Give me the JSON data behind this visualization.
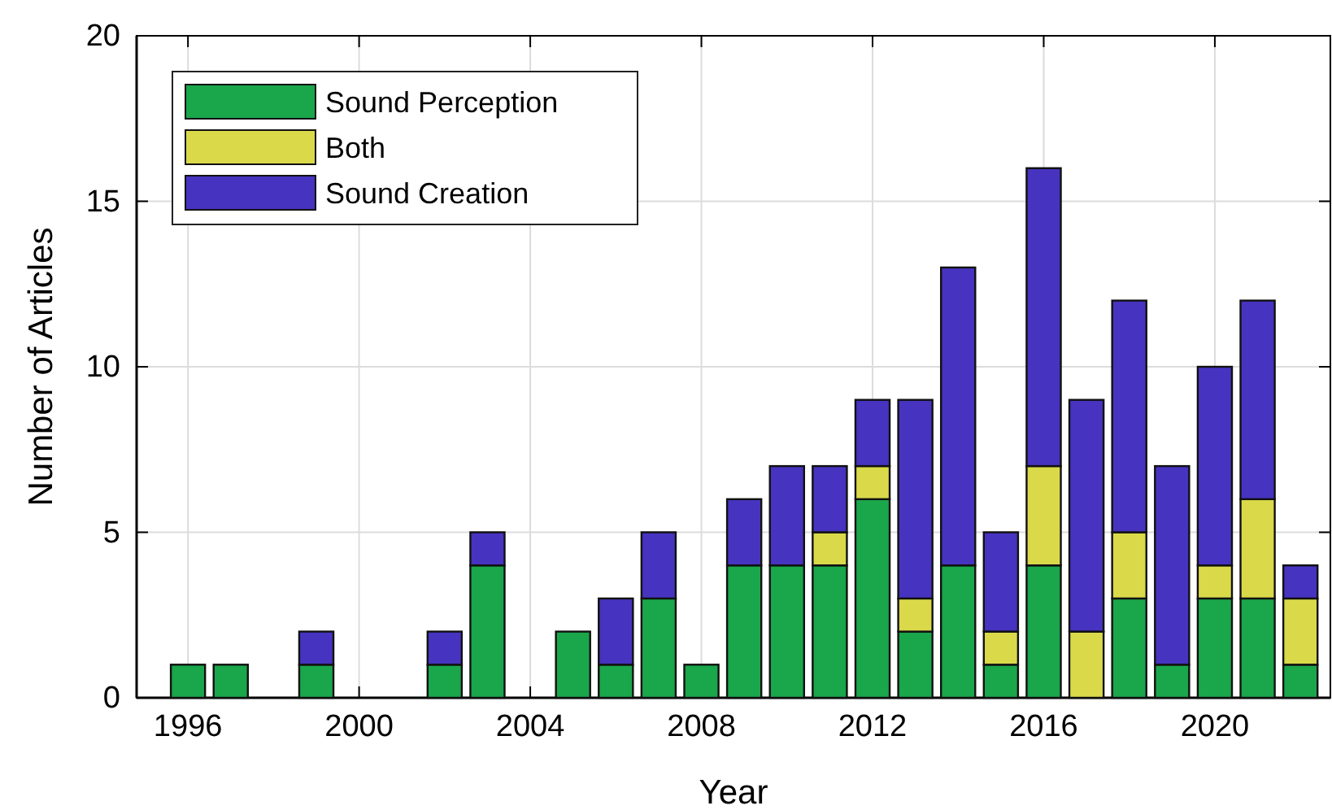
{
  "chart_data": {
    "type": "bar",
    "stacked": true,
    "xlabel": "Year",
    "ylabel": "Number of Articles",
    "x": [
      1996,
      1997,
      1999,
      2002,
      2003,
      2005,
      2006,
      2007,
      2008,
      2009,
      2010,
      2011,
      2012,
      2013,
      2014,
      2015,
      2016,
      2017,
      2018,
      2019,
      2020,
      2021,
      2022
    ],
    "series": [
      {
        "name": "Sound Perception",
        "color": "#1aa64a",
        "values": [
          1,
          1,
          1,
          1,
          4,
          2,
          1,
          3,
          1,
          4,
          4,
          4,
          6,
          2,
          4,
          1,
          4,
          null,
          3,
          1,
          3,
          3,
          1
        ]
      },
      {
        "name": "Both",
        "color": "#d9d94a",
        "values": [
          null,
          null,
          null,
          null,
          null,
          null,
          null,
          null,
          null,
          null,
          null,
          1,
          1,
          1,
          null,
          1,
          3,
          2,
          2,
          null,
          1,
          3,
          2
        ]
      },
      {
        "name": "Sound Creation",
        "color": "#4633bf",
        "values": [
          null,
          null,
          1,
          1,
          1,
          null,
          2,
          2,
          null,
          2,
          3,
          2,
          2,
          6,
          9,
          3,
          9,
          7,
          7,
          6,
          6,
          6,
          1
        ]
      }
    ],
    "xlim": [
      1994.8,
      2022.7
    ],
    "xticks": [
      1996,
      2000,
      2004,
      2008,
      2012,
      2016,
      2020
    ],
    "ylim": [
      0,
      20
    ],
    "yticks": [
      0,
      5,
      10,
      15,
      20
    ],
    "grid": true,
    "legend": "top left"
  }
}
